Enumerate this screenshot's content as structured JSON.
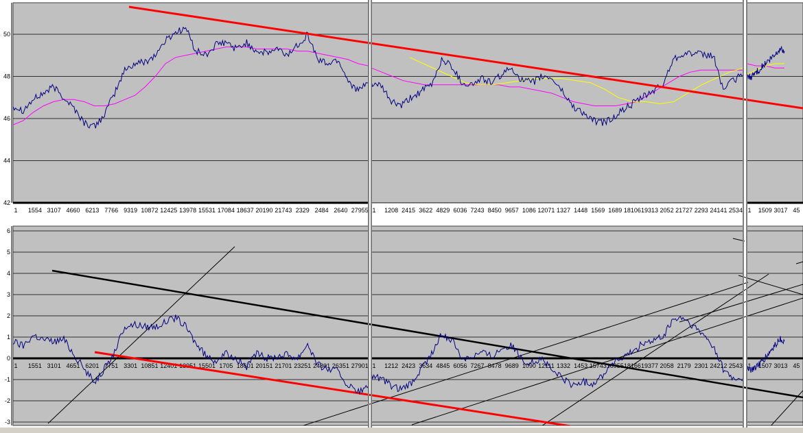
{
  "chart_data": [
    {
      "type": "line",
      "ylim": [
        42,
        51
      ],
      "y_ticks": [
        "42",
        "44",
        "46",
        "48",
        "50"
      ],
      "x_tick_labels_panel1": [
        "1",
        "1554",
        "3107",
        "4660",
        "6213",
        "7766",
        "9319",
        "10872",
        "12425",
        "13978",
        "15531",
        "17084",
        "18637",
        "20190",
        "21743",
        "2329",
        "2484",
        "2640",
        "27955"
      ],
      "x_tick_labels_panel2": [
        "1",
        "1208",
        "2415",
        "3622",
        "4829",
        "6036",
        "7243",
        "8450",
        "9657",
        "1086",
        "12071",
        "1327",
        "1448",
        "1569",
        "1689",
        "18106",
        "19313",
        "2052",
        "21727",
        "2293",
        "24141",
        "2534"
      ],
      "x_tick_labels_panel3": [
        "1",
        "1509",
        "3017",
        "45"
      ],
      "series": [
        {
          "color": "#000080",
          "role": "price",
          "values": [
            46.6,
            46.4,
            46.9,
            47.2,
            47.5,
            47.0,
            46.5,
            45.8,
            45.6,
            46.2,
            47.2,
            48.3,
            48.6,
            48.7,
            49.0,
            49.7,
            50.1,
            50.3,
            49.2,
            49.0,
            49.5,
            49.6,
            49.3,
            49.6,
            49.2,
            49.1,
            49.3,
            49.0,
            49.5,
            50.0,
            48.8,
            48.6,
            48.8,
            47.8,
            47.3,
            47.7
          ]
        },
        {
          "color": "#FF00FF",
          "role": "moving-average",
          "values": [
            45.7,
            45.9,
            46.3,
            46.6,
            46.8,
            46.9,
            46.9,
            46.8,
            46.6,
            46.6,
            46.7,
            46.9,
            47.1,
            47.5,
            48.0,
            48.6,
            48.9,
            49.0,
            49.1,
            49.2,
            49.3,
            49.4,
            49.4,
            49.4,
            49.3,
            49.3,
            49.3,
            49.3,
            49.2,
            49.2,
            49.1,
            49.0,
            48.9,
            48.8,
            48.6,
            48.5
          ]
        },
        {
          "color": "#000080",
          "role": "price",
          "values": [
            47.7,
            47.5,
            46.8,
            46.6,
            47.0,
            47.3,
            47.6,
            48.8,
            48.5,
            47.7,
            47.6,
            47.9,
            47.7,
            48.1,
            48.4,
            47.8,
            47.7,
            48.0,
            47.9,
            47.3,
            46.6,
            46.3,
            45.9,
            45.8,
            46.0,
            46.4,
            46.7,
            47.0,
            47.3,
            47.6,
            48.8,
            49.1,
            49.1,
            49.0,
            49.0,
            47.4,
            47.8,
            48.1
          ]
        },
        {
          "color": "#FF00FF",
          "role": "moving-average",
          "values": [
            48.4,
            48.2,
            48.0,
            47.8,
            47.7,
            47.6,
            47.6,
            47.6,
            47.6,
            47.6,
            47.6,
            47.6,
            47.6,
            47.5,
            47.5,
            47.4,
            47.3,
            47.2,
            47.0,
            46.8,
            46.7,
            46.6,
            46.6,
            46.6,
            46.7,
            46.8,
            47.1,
            47.4,
            47.7,
            48.0,
            48.2,
            48.3,
            48.3,
            48.3,
            48.3,
            48.3
          ]
        },
        {
          "color": "#FFFF00",
          "role": "moving-average",
          "values": [
            48.9,
            48.6,
            48.3,
            48.0,
            47.7,
            47.6,
            47.6,
            47.7,
            47.8,
            47.9,
            47.9,
            47.9,
            47.8,
            47.7,
            47.4,
            47.0,
            46.8,
            46.8,
            46.7,
            46.8,
            47.2,
            47.6,
            47.9,
            48.2,
            48.4
          ]
        },
        {
          "color": "#000080",
          "role": "price",
          "values": [
            47.9,
            48.0,
            48.2,
            48.4,
            48.6,
            48.8,
            49.0,
            49.3,
            49.2
          ]
        },
        {
          "color": "#FF00FF",
          "role": "moving-average",
          "values": [
            48.6,
            48.5,
            48.5,
            48.4,
            48.4
          ]
        },
        {
          "color": "#FFFF00",
          "role": "moving-average",
          "values": [
            48.1,
            48.3,
            48.5,
            48.6,
            48.6
          ]
        }
      ],
      "trendline_color": "#FF0000"
    },
    {
      "type": "line",
      "ylim": [
        -3,
        6
      ],
      "y_ticks": [
        "-3",
        "-2",
        "-1",
        "0",
        "1",
        "2",
        "3",
        "4",
        "5",
        "6"
      ],
      "x_tick_labels_panel1": [
        "1",
        "1551",
        "3101",
        "4651",
        "6201",
        "7751",
        "3301",
        "10851",
        "12401",
        "13951",
        "15501",
        "1705",
        "18601",
        "20151",
        "21701",
        "23251",
        "24801",
        "26351",
        "27901"
      ],
      "x_tick_labels_panel2": [
        "1",
        "1212",
        "2423",
        "3634",
        "4845",
        "6056",
        "7267",
        "8478",
        "9689",
        "1090",
        "12111",
        "1332",
        "1453",
        "15743",
        "16955",
        "18166",
        "19377",
        "2058",
        "2179",
        "2301",
        "24212",
        "2543"
      ],
      "x_tick_labels_panel3": [
        "1",
        "1507",
        "3013",
        "45"
      ],
      "series": [
        {
          "color": "#000080",
          "role": "oscillator",
          "values": [
            0.8,
            0.6,
            1.1,
            0.9,
            0.8,
            0.9,
            0.2,
            -0.5,
            -1.1,
            -0.5,
            0.3,
            1.5,
            1.6,
            1.5,
            1.5,
            1.7,
            1.9,
            1.5,
            0.7,
            0.1,
            -0.1,
            0.2,
            0.0,
            -0.4,
            0.2,
            0.0,
            0.1,
            0.2,
            0.0,
            0.7,
            -0.3,
            -0.5,
            -0.6,
            -1.3,
            -1.6,
            -1.3
          ]
        },
        {
          "color": "#000080",
          "role": "oscillator",
          "values": [
            -0.8,
            -1.0,
            -1.3,
            -1.5,
            -1.2,
            -0.5,
            0.2,
            1.1,
            0.9,
            0.0,
            0.1,
            0.3,
            0.1,
            0.5,
            0.6,
            -0.1,
            -0.2,
            0.0,
            -0.6,
            -0.9,
            -1.3,
            -1.1,
            -1.2,
            -0.8,
            -0.2,
            0.0,
            0.3,
            0.7,
            0.8,
            1.0,
            1.8,
            1.9,
            1.5,
            1.1,
            0.6,
            -0.5,
            -1.0,
            -0.9
          ]
        },
        {
          "color": "#000080",
          "role": "oscillator",
          "values": [
            -0.4,
            -0.6,
            -0.4,
            -0.2,
            0.0,
            0.3,
            0.6,
            0.9,
            0.8
          ]
        }
      ],
      "trendline_colors": [
        "#000000",
        "#FF0000"
      ]
    }
  ]
}
